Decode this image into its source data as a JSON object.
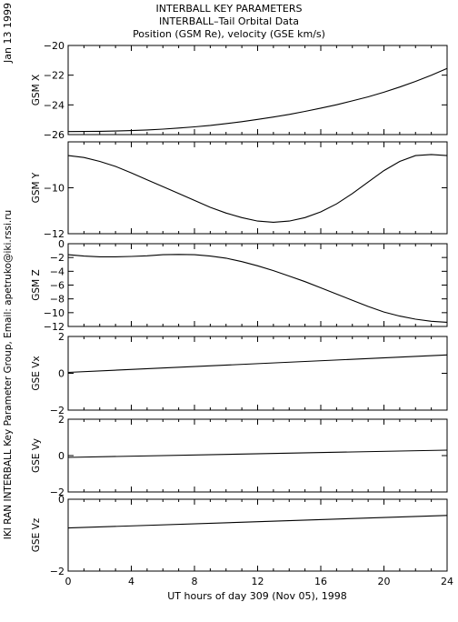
{
  "header": {
    "date": "Jan 13 1999",
    "title1": "INTERBALL KEY PARAMETERS",
    "title2": "INTERBALL–Tail Orbital Data",
    "title3": "Position (GSM Re), velocity (GSE km/s)"
  },
  "credit": "IKI RAN INTERBALL Key Parameter Group, Email: apetruko@iki.rssi.ru",
  "chart_data": [
    {
      "type": "line",
      "ylabel": "GSM X",
      "ylim": [
        -26,
        -20
      ],
      "yticks": [
        -26,
        -24,
        -22,
        -20
      ],
      "ytick_labels": [
        "−26",
        "−24",
        "−22",
        "−20"
      ],
      "x": [
        0,
        1,
        2,
        3,
        4,
        5,
        6,
        7,
        8,
        9,
        10,
        11,
        12,
        13,
        14,
        15,
        16,
        17,
        18,
        19,
        20,
        21,
        22,
        23,
        24
      ],
      "values": [
        -25.8,
        -25.79,
        -25.78,
        -25.76,
        -25.73,
        -25.69,
        -25.63,
        -25.56,
        -25.48,
        -25.38,
        -25.26,
        -25.13,
        -24.98,
        -24.82,
        -24.64,
        -24.44,
        -24.22,
        -23.99,
        -23.73,
        -23.46,
        -23.15,
        -22.8,
        -22.42,
        -22.0,
        -21.55
      ]
    },
    {
      "type": "line",
      "ylabel": "GSM Y",
      "ylim": [
        -12,
        -8
      ],
      "yticks": [
        -12,
        -10
      ],
      "ytick_labels": [
        "−12",
        "−10"
      ],
      "x": [
        0,
        1,
        2,
        3,
        4,
        5,
        6,
        7,
        8,
        9,
        10,
        11,
        12,
        13,
        14,
        15,
        16,
        17,
        18,
        19,
        20,
        21,
        22,
        23,
        24
      ],
      "values": [
        -8.6,
        -8.68,
        -8.85,
        -9.07,
        -9.35,
        -9.65,
        -9.95,
        -10.25,
        -10.55,
        -10.85,
        -11.1,
        -11.3,
        -11.45,
        -11.5,
        -11.45,
        -11.3,
        -11.05,
        -10.7,
        -10.25,
        -9.75,
        -9.25,
        -8.85,
        -8.6,
        -8.55,
        -8.6
      ]
    },
    {
      "type": "line",
      "ylabel": "GSM Z",
      "ylim": [
        -12,
        0
      ],
      "yticks": [
        -12,
        -10,
        -8,
        -6,
        -4,
        -2,
        0
      ],
      "ytick_labels": [
        "−12",
        "−10",
        "−8",
        "−6",
        "−4",
        "−2",
        "0"
      ],
      "x": [
        0,
        1,
        2,
        3,
        4,
        5,
        6,
        7,
        8,
        9,
        10,
        11,
        12,
        13,
        14,
        15,
        16,
        17,
        18,
        19,
        20,
        21,
        22,
        23,
        24
      ],
      "values": [
        -1.6,
        -1.8,
        -1.9,
        -1.9,
        -1.85,
        -1.75,
        -1.6,
        -1.55,
        -1.6,
        -1.8,
        -2.1,
        -2.6,
        -3.2,
        -3.9,
        -4.7,
        -5.5,
        -6.4,
        -7.3,
        -8.2,
        -9.1,
        -9.9,
        -10.5,
        -10.95,
        -11.25,
        -11.4
      ]
    },
    {
      "type": "line",
      "ylabel": "GSE Vx",
      "ylim": [
        -2,
        2
      ],
      "yticks": [
        -2,
        0,
        2
      ],
      "ytick_labels": [
        "−2",
        "0",
        "2"
      ],
      "x": [
        0,
        24
      ],
      "values": [
        0.05,
        1.0
      ]
    },
    {
      "type": "line",
      "ylabel": "GSE Vy",
      "ylim": [
        -2,
        2
      ],
      "yticks": [
        -2,
        0,
        2
      ],
      "ytick_labels": [
        "−2",
        "0",
        "2"
      ],
      "x": [
        0,
        24
      ],
      "values": [
        -0.1,
        0.3
      ]
    },
    {
      "type": "line",
      "ylabel": "GSE Vz",
      "ylim": [
        -2,
        0
      ],
      "yticks": [
        -2,
        0
      ],
      "ytick_labels": [
        "−2",
        "0"
      ],
      "x": [
        0,
        24
      ],
      "values": [
        -0.8,
        -0.45
      ]
    }
  ],
  "xaxis": {
    "xlim": [
      0,
      24
    ],
    "ticks": [
      0,
      4,
      8,
      12,
      16,
      20,
      24
    ],
    "tick_labels": [
      "0",
      "4",
      "8",
      "12",
      "16",
      "20",
      "24"
    ],
    "label": "UT hours of day 309 (Nov 05), 1998"
  }
}
